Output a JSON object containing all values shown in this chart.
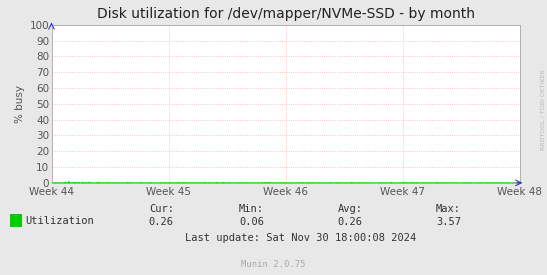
{
  "title": "Disk utilization for /dev/mapper/NVMe-SSD - by month",
  "ylabel": "% busy",
  "bg_color": "#e8e8e8",
  "plot_bg_color": "#ffffff",
  "grid_color": "#ffb0b0",
  "line_color": "#00cc00",
  "fill_color": "#00cc00",
  "yticks": [
    0,
    10,
    20,
    30,
    40,
    50,
    60,
    70,
    80,
    90,
    100
  ],
  "ylim": [
    0,
    100
  ],
  "xtick_labels": [
    "Week 44",
    "Week 45",
    "Week 46",
    "Week 47",
    "Week 48"
  ],
  "legend_label": "Utilization",
  "legend_color": "#00cc00",
  "cur_label": "Cur:",
  "cur_val": "0.26",
  "min_label": "Min:",
  "min_val": "0.06",
  "avg_label": "Avg:",
  "avg_val": "0.26",
  "max_label": "Max:",
  "max_val": "3.57",
  "last_update": "Last update: Sat Nov 30 18:00:08 2024",
  "watermark": "Munin 2.0.75",
  "rrdtool_label": "RRDTOOL / TOBI OETIKER",
  "title_fontsize": 10,
  "axis_fontsize": 7.5,
  "legend_fontsize": 7.5,
  "small_fontsize": 6.5
}
